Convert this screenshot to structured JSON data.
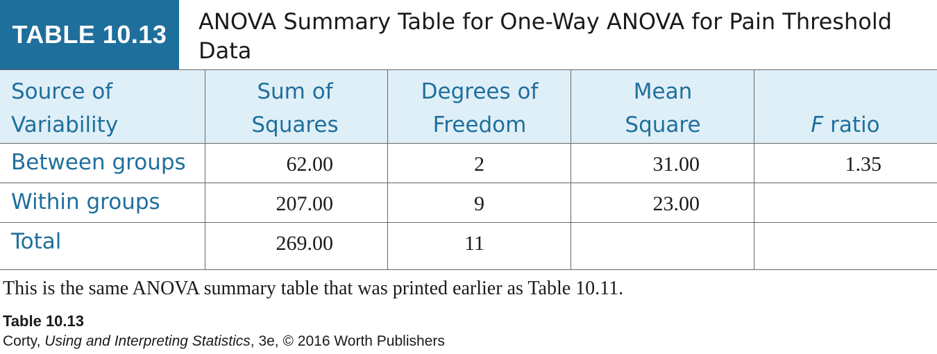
{
  "table": {
    "label": "TABLE 10.13",
    "title": "ANOVA Summary Table for One-Way ANOVA for Pain Threshold Data"
  },
  "columns": {
    "source_line1": "Source of",
    "source_line2": "Variability",
    "ss_line1": "Sum of",
    "ss_line2": "Squares",
    "df_line1": "Degrees of",
    "df_line2": "Freedom",
    "ms_line1": "Mean",
    "ms_line2": "Square",
    "f_italic": "F",
    "f_rest": " ratio"
  },
  "rows": [
    {
      "source": "Between groups",
      "ss": "62.00",
      "df": "2",
      "ms": "31.00",
      "f": "1.35"
    },
    {
      "source": "Within groups",
      "ss": "207.00",
      "df": "9",
      "ms": "23.00",
      "f": ""
    },
    {
      "source": "Total",
      "ss": "269.00",
      "df": "11",
      "ms": "",
      "f": ""
    }
  ],
  "note": "This is the same ANOVA summary table that was printed earlier as Table 10.11.",
  "footer": {
    "table_ref": "Table 10.13",
    "credit_author": "Corty, ",
    "credit_book": "Using and Interpreting Statistics",
    "credit_rest": ", 3e, © 2016 Worth Publishers"
  },
  "colors": {
    "accent": "#1f6f9c",
    "header_bg": "#dfeff8"
  }
}
